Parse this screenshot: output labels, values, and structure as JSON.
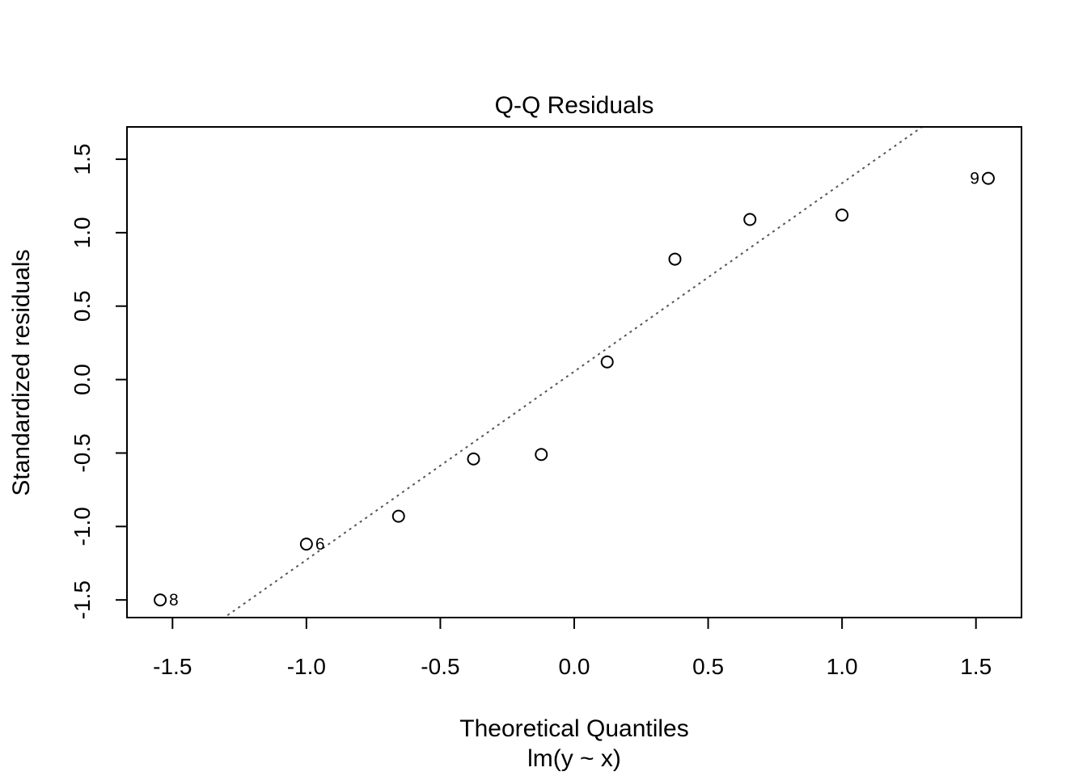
{
  "chart_data": {
    "type": "scatter",
    "title": "Q-Q Residuals",
    "xlabel": "Theoretical Quantiles",
    "sublabel": "lm(y ~ x)",
    "ylabel": "Standardized residuals",
    "xlim": [
      -1.67,
      1.67
    ],
    "ylim": [
      -1.62,
      1.72
    ],
    "xticks": [
      -1.5,
      -1.0,
      -0.5,
      0.0,
      0.5,
      1.0,
      1.5
    ],
    "xtick_labels": [
      "-1.5",
      "-1.0",
      "-0.5",
      "0.0",
      "0.5",
      "1.0",
      "1.5"
    ],
    "yticks": [
      -1.5,
      -1.0,
      -0.5,
      0.0,
      0.5,
      1.0,
      1.5
    ],
    "ytick_labels": [
      "-1.5",
      "-1.0",
      "-0.5",
      "0.0",
      "0.5",
      "1.0",
      "1.5"
    ],
    "grid": false,
    "points": [
      {
        "x": -1.546,
        "y": -1.5,
        "label": "8"
      },
      {
        "x": -1.0,
        "y": -1.12,
        "label": "6"
      },
      {
        "x": -0.656,
        "y": -0.93,
        "label": ""
      },
      {
        "x": -0.376,
        "y": -0.54,
        "label": ""
      },
      {
        "x": -0.123,
        "y": -0.51,
        "label": ""
      },
      {
        "x": 0.123,
        "y": 0.12,
        "label": ""
      },
      {
        "x": 0.376,
        "y": 0.82,
        "label": ""
      },
      {
        "x": 0.656,
        "y": 1.09,
        "label": ""
      },
      {
        "x": 1.0,
        "y": 1.12,
        "label": ""
      },
      {
        "x": 1.546,
        "y": 1.37,
        "label": "9"
      }
    ],
    "reference_line": {
      "intercept": 0.055,
      "slope": 1.282,
      "style": "dotted",
      "color": "#555555"
    }
  }
}
